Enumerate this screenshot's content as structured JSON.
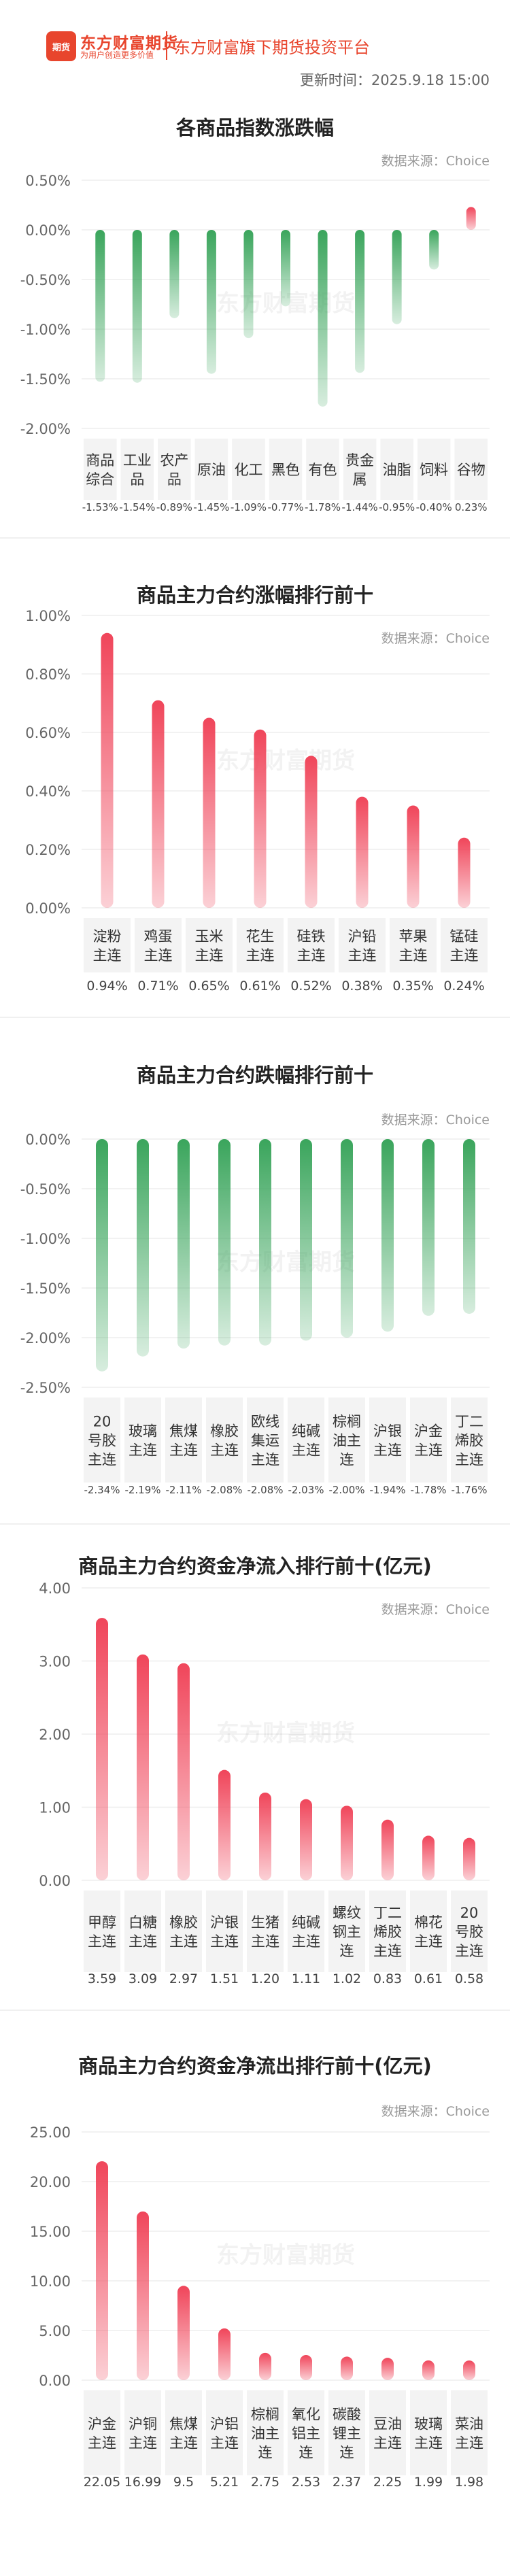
{
  "header": {
    "logo_badge": "期货",
    "brand_name": "东方财富期货",
    "brand_slogan": "为用户创造更多价值",
    "platform": "东方财富旗下期货投资平台",
    "update_label": "更新时间：",
    "update_time": "2025.9.18 15:00"
  },
  "colors": {
    "up": "#f0455a",
    "down": "#3aa55c",
    "grid": "#eeeeee",
    "axis_text": "#666666"
  },
  "sections": [
    {
      "title": "各商品指数涨跌幅",
      "source": "数据来源：Choice"
    },
    {
      "title": "商品主力合约涨幅排行前十",
      "source": "数据来源：Choice"
    },
    {
      "title": "商品主力合约跌幅排行前十",
      "source": "数据来源：Choice"
    },
    {
      "title": "商品主力合约资金净流入排行前十(亿元)",
      "source": "数据来源：Choice"
    },
    {
      "title": "商品主力合约资金净流出排行前十(亿元)",
      "source": "数据来源：Choice"
    }
  ],
  "chart_data": [
    {
      "type": "bar",
      "title": "各商品指数涨跌幅",
      "categories": [
        "商品综合",
        "工业品",
        "农产品",
        "原油",
        "化工",
        "黑色",
        "有色",
        "贵金属",
        "油脂",
        "饲料",
        "谷物"
      ],
      "values": [
        -1.53,
        -1.54,
        -0.89,
        -1.45,
        -1.09,
        -0.77,
        -1.78,
        -1.44,
        -0.95,
        -0.4,
        0.23
      ],
      "value_labels": [
        "-1.53%",
        "-1.54%",
        "-0.89%",
        "-1.45%",
        "-1.09%",
        "-0.77%",
        "-1.78%",
        "-1.44%",
        "-0.95%",
        "-0.40%",
        "0.23%"
      ],
      "yticks": [
        "0.50%",
        "0.00%",
        "-0.50%",
        "-1.00%",
        "-1.50%",
        "-2.00%"
      ],
      "ylim": [
        -2.0,
        0.5
      ]
    },
    {
      "type": "bar",
      "title": "商品主力合约涨幅排行前十",
      "categories": [
        "淀粉主连",
        "鸡蛋主连",
        "玉米主连",
        "花生主连",
        "硅铁主连",
        "沪铅主连",
        "苹果主连",
        "锰硅主连"
      ],
      "values": [
        0.94,
        0.71,
        0.65,
        0.61,
        0.52,
        0.38,
        0.35,
        0.24
      ],
      "value_labels": [
        "0.94%",
        "0.71%",
        "0.65%",
        "0.61%",
        "0.52%",
        "0.38%",
        "0.35%",
        "0.24%"
      ],
      "yticks": [
        "1.00%",
        "0.80%",
        "0.60%",
        "0.40%",
        "0.20%",
        "0.00%"
      ],
      "ylim": [
        0,
        1.0
      ]
    },
    {
      "type": "bar",
      "title": "商品主力合约跌幅排行前十",
      "categories": [
        "20号胶主连",
        "玻璃主连",
        "焦煤主连",
        "橡胶主连",
        "欧线集运主连",
        "纯碱主连",
        "棕榈油主连",
        "沪银主连",
        "沪金主连",
        "丁二烯胶主连"
      ],
      "values": [
        -2.34,
        -2.19,
        -2.11,
        -2.08,
        -2.08,
        -2.03,
        -2.0,
        -1.94,
        -1.78,
        -1.76
      ],
      "value_labels": [
        "-2.34%",
        "-2.19%",
        "-2.11%",
        "-2.08%",
        "-2.08%",
        "-2.03%",
        "-2.00%",
        "-1.94%",
        "-1.78%",
        "-1.76%"
      ],
      "yticks": [
        "0.00%",
        "-0.50%",
        "-1.00%",
        "-1.50%",
        "-2.00%",
        "-2.50%"
      ],
      "ylim": [
        -2.5,
        0
      ]
    },
    {
      "type": "bar",
      "title": "商品主力合约资金净流入排行前十(亿元)",
      "categories": [
        "甲醇主连",
        "白糖主连",
        "橡胶主连",
        "沪银主连",
        "生猪主连",
        "纯碱主连",
        "螺纹钢主连",
        "丁二烯胶主连",
        "棉花主连",
        "20号胶主连"
      ],
      "values": [
        3.59,
        3.09,
        2.97,
        1.51,
        1.2,
        1.11,
        1.02,
        0.83,
        0.61,
        0.58
      ],
      "value_labels": [
        "3.59",
        "3.09",
        "2.97",
        "1.51",
        "1.20",
        "1.11",
        "1.02",
        "0.83",
        "0.61",
        "0.58"
      ],
      "yticks": [
        "4.00",
        "3.00",
        "2.00",
        "1.00",
        "0.00"
      ],
      "ylim": [
        0,
        4.0
      ]
    },
    {
      "type": "bar",
      "title": "商品主力合约资金净流出排行前十(亿元)",
      "categories": [
        "沪金主连",
        "沪铜主连",
        "焦煤主连",
        "沪铝主连",
        "棕榈油主连",
        "氧化铝主连",
        "碳酸锂主连",
        "豆油主连",
        "玻璃主连",
        "菜油主连"
      ],
      "values": [
        22.05,
        16.99,
        9.5,
        5.21,
        2.75,
        2.53,
        2.37,
        2.25,
        1.99,
        1.98
      ],
      "value_labels": [
        "22.05",
        "16.99",
        "9.5",
        "5.21",
        "2.75",
        "2.53",
        "2.37",
        "2.25",
        "1.99",
        "1.98"
      ],
      "yticks": [
        "25.00",
        "20.00",
        "15.00",
        "10.00",
        "5.00",
        "0.00"
      ],
      "ylim": [
        0,
        25.0
      ]
    }
  ]
}
